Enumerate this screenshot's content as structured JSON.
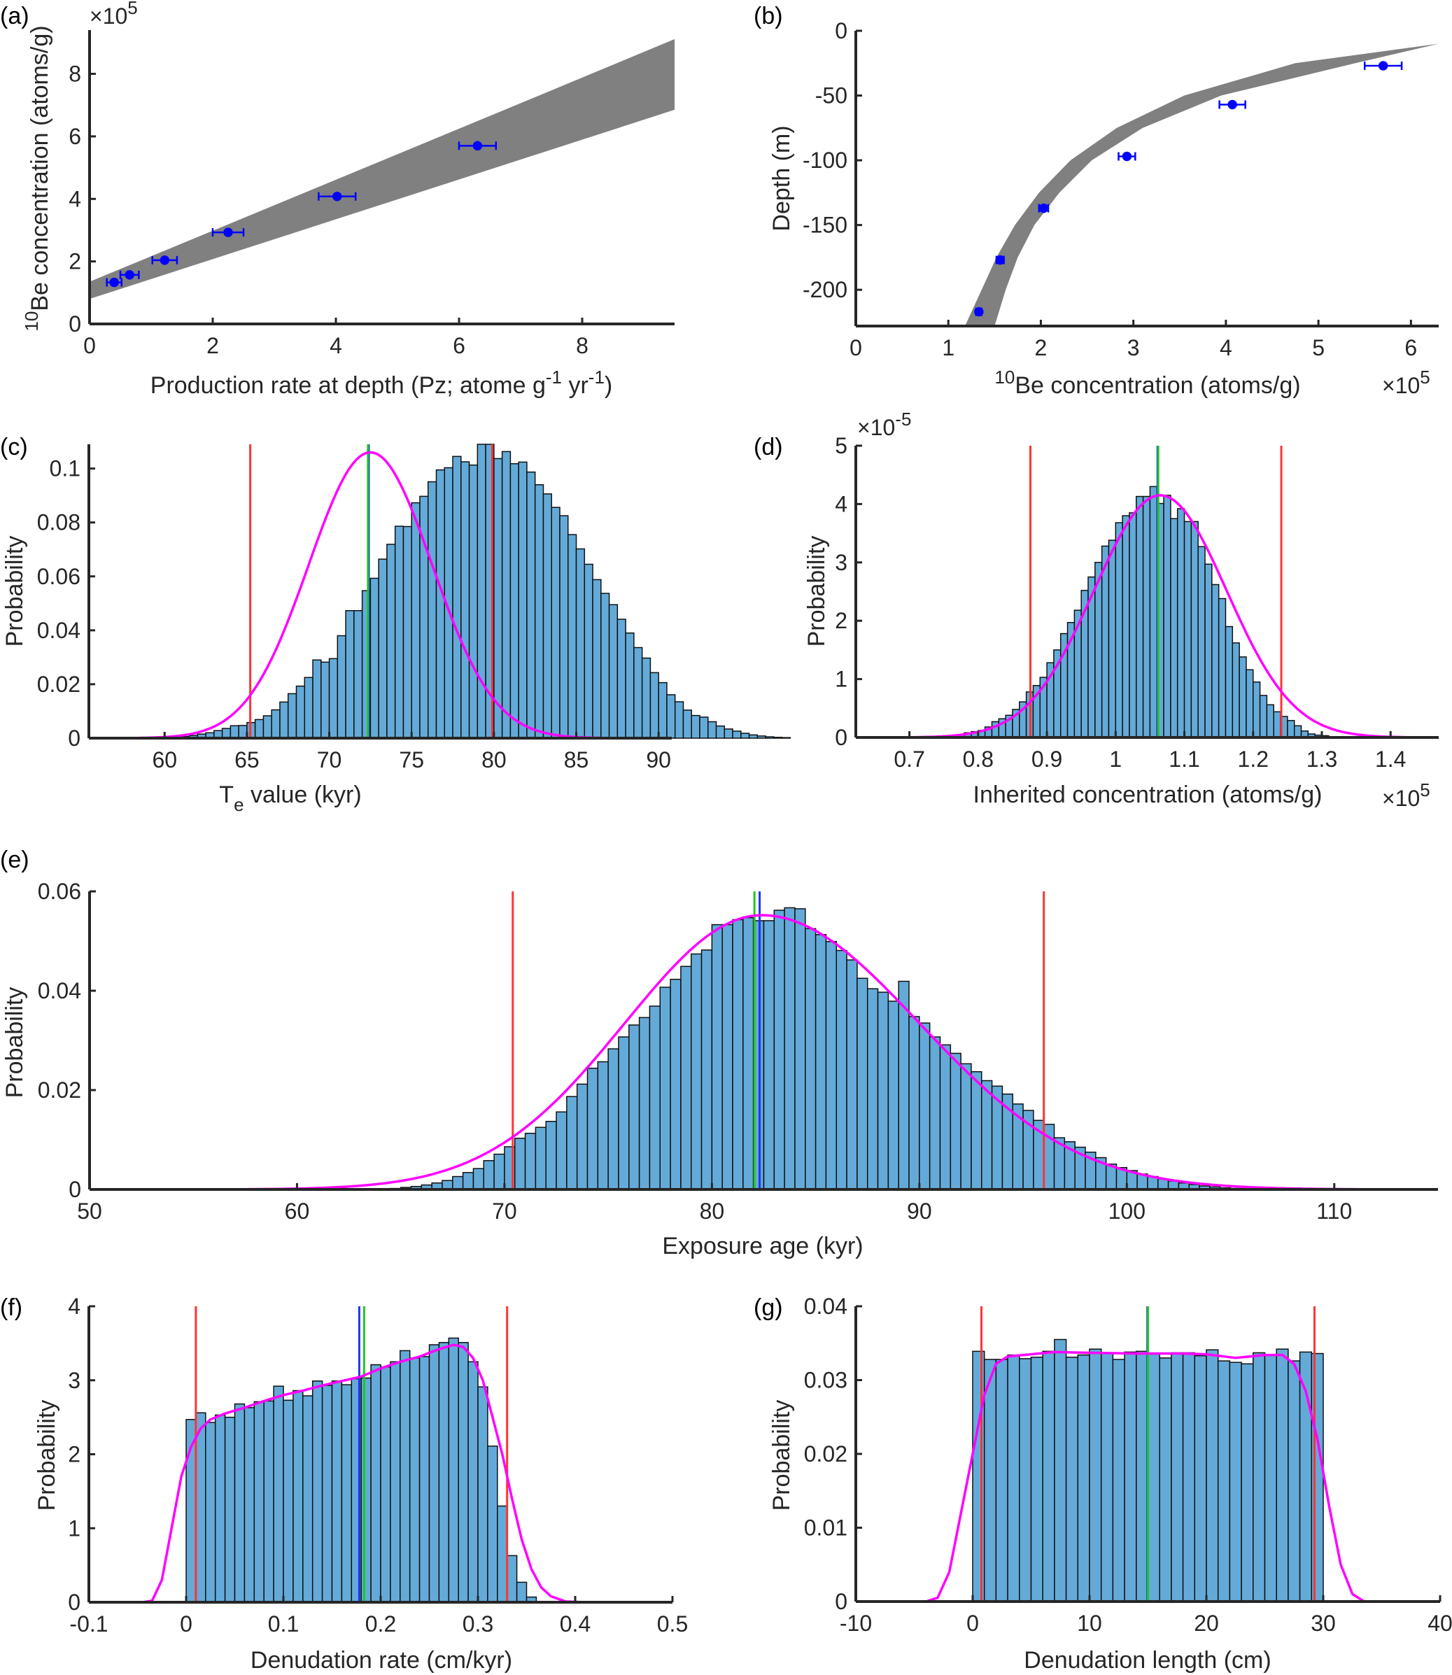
{
  "figure": {
    "description": "Monte Carlo depth-profile inversion results (panels a-g)"
  },
  "colors": {
    "band": "#808080",
    "points": "#0000ff",
    "bars": "#64aad8",
    "bar_edge": "#111111",
    "pdf": "#ff00ff",
    "ci": "#ff3333",
    "median": "#1ec81e",
    "mean": "#2233ee",
    "axis": "#262626"
  },
  "chart_data": [
    {
      "id": "a",
      "panel_label": "(a)",
      "type": "line",
      "xlabel": "Production rate at depth (Pz; atome g",
      "xlabel_sup1": "-1",
      "xlabel_mid": " yr",
      "xlabel_sup2": "-1",
      "xlabel_end": ")",
      "ylabel_sup": "10",
      "ylabel": "Be concentration (atoms/g)",
      "y_multiplier": "×10",
      "y_multiplier_exp": "5",
      "xlim": [
        0,
        9.5
      ],
      "ylim": [
        0,
        9.4
      ],
      "xticks": [
        0,
        2,
        4,
        6,
        8
      ],
      "yticks": [
        0,
        2,
        4,
        6,
        8
      ],
      "band": {
        "description": "Monte Carlo linear fits",
        "x": [
          0,
          9.5
        ],
        "upper": [
          1.35,
          9.1
        ],
        "lower": [
          0.8,
          6.85
        ]
      },
      "points": [
        {
          "x": 0.4,
          "y": 1.33,
          "xerr": 0.12,
          "yerr": 0.05
        },
        {
          "x": 0.65,
          "y": 1.57,
          "xerr": 0.15,
          "yerr": 0.06
        },
        {
          "x": 1.22,
          "y": 2.04,
          "xerr": 0.2,
          "yerr": 0.07
        },
        {
          "x": 2.25,
          "y": 2.93,
          "xerr": 0.25,
          "yerr": 0.08
        },
        {
          "x": 4.02,
          "y": 4.08,
          "xerr": 0.3,
          "yerr": 0.1
        },
        {
          "x": 6.3,
          "y": 5.7,
          "xerr": 0.3,
          "yerr": 0.15
        }
      ]
    },
    {
      "id": "b",
      "panel_label": "(b)",
      "type": "line",
      "xlabel_sup": "10",
      "xlabel": "Be concentration (atoms/g)",
      "x_multiplier": "×10",
      "x_multiplier_exp": "5",
      "ylabel": "Depth (m)",
      "xlim": [
        0,
        6.3
      ],
      "ylim": [
        -228,
        0
      ],
      "xticks": [
        0,
        1,
        2,
        3,
        4,
        5,
        6
      ],
      "yticks": [
        0,
        -50,
        -100,
        -150,
        -200
      ],
      "band": {
        "description": "Monte Carlo depth profiles",
        "depth": [
          -228,
          -200,
          -175,
          -150,
          -125,
          -100,
          -75,
          -50,
          -25,
          -10
        ],
        "left": [
          1.18,
          1.36,
          1.52,
          1.72,
          1.98,
          2.32,
          2.82,
          3.55,
          4.75,
          6.3
        ],
        "right": [
          1.5,
          1.62,
          1.75,
          1.93,
          2.2,
          2.55,
          3.1,
          3.95,
          5.4,
          6.3
        ]
      },
      "points": [
        {
          "x": 1.33,
          "y": -217,
          "xerr": 0.03,
          "yerr": 2
        },
        {
          "x": 1.56,
          "y": -177,
          "xerr": 0.04,
          "yerr": 2
        },
        {
          "x": 2.03,
          "y": -137,
          "xerr": 0.05,
          "yerr": 2
        },
        {
          "x": 2.93,
          "y": -97,
          "xerr": 0.09,
          "yerr": 2
        },
        {
          "x": 4.07,
          "y": -57,
          "xerr": 0.14,
          "yerr": 2
        },
        {
          "x": 5.7,
          "y": -27,
          "xerr": 0.2,
          "yerr": 2
        }
      ]
    },
    {
      "id": "c",
      "panel_label": "(c)",
      "type": "bar",
      "xlabel": "T",
      "xlabel_sub": "e",
      "xlabel_end": " value (kyr)",
      "ylabel": "Probability",
      "xlim": [
        55.4,
        90.8
      ],
      "ylim": [
        0,
        0.109
      ],
      "xticks": [
        60,
        65,
        70,
        75,
        80,
        85,
        90
      ],
      "yticks": [
        0,
        0.02,
        0.04,
        0.06,
        0.08,
        0.1
      ],
      "ytick_labels": [
        "0",
        "0.02",
        "0.04",
        "0.06",
        "0.08",
        "0.1"
      ],
      "bin_start": 60.0,
      "bin_width": 0.5,
      "values": [
        0.0002,
        0.0004,
        0.0006,
        0.001,
        0.0015,
        0.002,
        0.0028,
        0.0036,
        0.0046,
        0.0047,
        0.0058,
        0.0069,
        0.0083,
        0.0105,
        0.0134,
        0.0165,
        0.0193,
        0.0225,
        0.029,
        0.0282,
        0.0295,
        0.038,
        0.0473,
        0.0473,
        0.0547,
        0.0593,
        0.0664,
        0.0719,
        0.0786,
        0.0785,
        0.0873,
        0.0897,
        0.0951,
        0.0995,
        0.1003,
        0.1045,
        0.1025,
        0.1013,
        0.109,
        0.109,
        0.1037,
        0.1063,
        0.1018,
        0.1024,
        0.0987,
        0.094,
        0.0906,
        0.0856,
        0.0825,
        0.0755,
        0.0702,
        0.0645,
        0.0588,
        0.0537,
        0.0495,
        0.0441,
        0.039,
        0.0336,
        0.0297,
        0.0243,
        0.0206,
        0.0161,
        0.0135,
        0.0104,
        0.0084,
        0.0078,
        0.0061,
        0.0045,
        0.0034,
        0.0026,
        0.0018,
        0.0012,
        0.0008,
        0.0005,
        0.0003,
        0.0002
      ],
      "pdf": {
        "mu": 72.5,
        "sigma": 3.75,
        "peak": 0.106
      },
      "ci": [
        65.2,
        79.9
      ],
      "median": 72.35,
      "mean": 72.4
    },
    {
      "id": "d",
      "panel_label": "(d)",
      "type": "bar",
      "xlabel": "Inherited concentration (atoms/g)",
      "x_multiplier": "×10",
      "x_multiplier_exp": "5",
      "y_multiplier": "×10",
      "y_multiplier_exp": "-5",
      "ylabel": "Probability",
      "xlim": [
        0.622,
        1.47
      ],
      "ylim": [
        0,
        5
      ],
      "xticks": [
        0.7,
        0.8,
        0.9,
        1,
        1.1,
        1.2,
        1.3,
        1.4
      ],
      "xtick_labels": [
        "0.7",
        "0.8",
        "0.9",
        "1",
        "1.1",
        "1.2",
        "1.3",
        "1.4"
      ],
      "yticks": [
        0,
        1,
        2,
        3,
        4,
        5
      ],
      "bin_start": 0.76,
      "bin_width": 0.01,
      "values": [
        0.03,
        0.05,
        0.08,
        0.1,
        0.12,
        0.18,
        0.27,
        0.32,
        0.38,
        0.48,
        0.61,
        0.78,
        0.89,
        1.03,
        1.28,
        1.5,
        1.78,
        1.97,
        2.18,
        2.52,
        2.75,
        3.0,
        3.28,
        3.38,
        3.68,
        3.8,
        3.85,
        4.13,
        4.13,
        4.3,
        4.01,
        4.15,
        3.75,
        3.92,
        3.7,
        3.7,
        3.27,
        2.97,
        2.62,
        2.38,
        1.9,
        1.62,
        1.38,
        1.16,
        0.95,
        0.72,
        0.56,
        0.44,
        0.36,
        0.29,
        0.2,
        0.11,
        0.06,
        0.04,
        0.03
      ],
      "pdf": {
        "mu": 1.065,
        "sigma": 0.0965,
        "peak": 4.15
      },
      "ci": [
        0.876,
        1.241
      ],
      "median": 1.062,
      "mean": 1.061
    },
    {
      "id": "e",
      "panel_label": "(e)",
      "type": "bar",
      "xlabel": "Exposure age (kyr)",
      "ylabel": "Probability",
      "xlim": [
        50,
        115
      ],
      "ylim": [
        0,
        0.06
      ],
      "xticks": [
        50,
        60,
        70,
        80,
        90,
        100,
        110
      ],
      "yticks": [
        0,
        0.02,
        0.04,
        0.06
      ],
      "ytick_labels": [
        "0",
        "0.02",
        "0.04",
        "0.06"
      ],
      "bin_start": 64.5,
      "bin_width": 0.5,
      "values": [
        0.0002,
        0.0004,
        0.0006,
        0.0009,
        0.0013,
        0.0018,
        0.0026,
        0.0034,
        0.0042,
        0.0058,
        0.0071,
        0.0086,
        0.0103,
        0.0113,
        0.0125,
        0.0137,
        0.0156,
        0.0187,
        0.0212,
        0.0244,
        0.0257,
        0.0283,
        0.0307,
        0.0331,
        0.0346,
        0.0369,
        0.0407,
        0.0423,
        0.0449,
        0.0474,
        0.0482,
        0.0533,
        0.0533,
        0.0543,
        0.0547,
        0.0541,
        0.0541,
        0.0562,
        0.0567,
        0.0565,
        0.0525,
        0.0513,
        0.0499,
        0.0481,
        0.0462,
        0.0425,
        0.0404,
        0.0397,
        0.0379,
        0.0419,
        0.0348,
        0.0335,
        0.0307,
        0.0291,
        0.0274,
        0.0253,
        0.0237,
        0.0219,
        0.0208,
        0.0192,
        0.0172,
        0.0159,
        0.0139,
        0.0131,
        0.0104,
        0.0096,
        0.0085,
        0.0075,
        0.0064,
        0.0051,
        0.0044,
        0.0038,
        0.0031,
        0.0026,
        0.0021,
        0.0017,
        0.0013,
        0.001,
        0.0007,
        0.0005,
        0.0003,
        0.0002
      ],
      "pdf": {
        "mu": 82.4,
        "sigma_left": 6.6,
        "sigma_right": 7.6,
        "peak": 0.0552
      },
      "ci": [
        70.4,
        96.0
      ],
      "median": 82.05,
      "mean": 82.3
    },
    {
      "id": "f",
      "panel_label": "(f)",
      "type": "bar",
      "xlabel": "Denudation rate (cm/kyr)",
      "ylabel": "Probability",
      "xlim": [
        -0.1,
        0.5
      ],
      "ylim": [
        0,
        4
      ],
      "xticks": [
        -0.1,
        0,
        0.1,
        0.2,
        0.3,
        0.4,
        0.5
      ],
      "xtick_labels": [
        "-0.1",
        "0",
        "0.1",
        "0.2",
        "0.3",
        "0.4",
        "0.5"
      ],
      "yticks": [
        0,
        1,
        2,
        3,
        4
      ],
      "bin_start": 0.0,
      "bin_width": 0.01,
      "values": [
        2.47,
        2.56,
        2.43,
        2.53,
        2.5,
        2.68,
        2.63,
        2.71,
        2.72,
        2.92,
        2.73,
        2.86,
        2.79,
        2.99,
        2.93,
        2.99,
        2.94,
        3.02,
        3.03,
        3.21,
        3.18,
        3.25,
        3.4,
        3.3,
        3.32,
        3.48,
        3.51,
        3.57,
        3.51,
        3.25,
        2.91,
        2.11,
        1.3,
        0.63,
        0.27,
        0.07
      ],
      "pdf_points": [
        [
          -0.045,
          0
        ],
        [
          -0.035,
          0.02
        ],
        [
          -0.025,
          0.3
        ],
        [
          -0.015,
          1.0
        ],
        [
          -0.005,
          1.7
        ],
        [
          0.005,
          2.1
        ],
        [
          0.015,
          2.35
        ],
        [
          0.025,
          2.47
        ],
        [
          0.04,
          2.55
        ],
        [
          0.06,
          2.63
        ],
        [
          0.08,
          2.72
        ],
        [
          0.1,
          2.8
        ],
        [
          0.12,
          2.86
        ],
        [
          0.14,
          2.93
        ],
        [
          0.16,
          2.99
        ],
        [
          0.18,
          3.05
        ],
        [
          0.2,
          3.16
        ],
        [
          0.22,
          3.25
        ],
        [
          0.24,
          3.32
        ],
        [
          0.26,
          3.42
        ],
        [
          0.275,
          3.48
        ],
        [
          0.285,
          3.45
        ],
        [
          0.295,
          3.3
        ],
        [
          0.305,
          3.0
        ],
        [
          0.315,
          2.5
        ],
        [
          0.325,
          2.0
        ],
        [
          0.335,
          1.4
        ],
        [
          0.345,
          0.85
        ],
        [
          0.355,
          0.45
        ],
        [
          0.365,
          0.2
        ],
        [
          0.375,
          0.08
        ],
        [
          0.39,
          0.01
        ],
        [
          0.41,
          0
        ],
        [
          0.45,
          0
        ]
      ],
      "ci": [
        0.01,
        0.33
      ],
      "median": 0.183,
      "mean": 0.178
    },
    {
      "id": "g",
      "panel_label": "(g)",
      "type": "bar",
      "xlabel": "Denudation length (cm)",
      "ylabel": "Probability",
      "xlim": [
        -10,
        40
      ],
      "ylim": [
        0,
        0.04
      ],
      "xticks": [
        -10,
        0,
        10,
        20,
        30,
        40
      ],
      "yticks": [
        0,
        0.01,
        0.02,
        0.03,
        0.04
      ],
      "ytick_labels": [
        "0",
        "0.01",
        "0.02",
        "0.03",
        "0.04"
      ],
      "bin_start": 0,
      "bin_width": 1,
      "values": [
        0.0339,
        0.0328,
        0.0328,
        0.0334,
        0.0329,
        0.0331,
        0.0339,
        0.0355,
        0.0331,
        0.0334,
        0.0342,
        0.0336,
        0.0328,
        0.0338,
        0.0339,
        0.0336,
        0.033,
        0.0337,
        0.0337,
        0.0333,
        0.0341,
        0.0326,
        0.0324,
        0.0322,
        0.0337,
        0.0334,
        0.0342,
        0.0326,
        0.0338,
        0.0336
      ],
      "pdf_points": [
        [
          -4,
          0
        ],
        [
          -3,
          0.0005
        ],
        [
          -2,
          0.004
        ],
        [
          -1,
          0.012
        ],
        [
          0,
          0.02
        ],
        [
          1,
          0.028
        ],
        [
          2,
          0.0322
        ],
        [
          3,
          0.0332
        ],
        [
          5,
          0.0335
        ],
        [
          7,
          0.0338
        ],
        [
          10,
          0.0337
        ],
        [
          14,
          0.0336
        ],
        [
          18,
          0.0336
        ],
        [
          20,
          0.0335
        ],
        [
          22.5,
          0.033
        ],
        [
          25,
          0.0334
        ],
        [
          26.5,
          0.0334
        ],
        [
          27.5,
          0.0322
        ],
        [
          28.5,
          0.0285
        ],
        [
          29.5,
          0.022
        ],
        [
          30.5,
          0.013
        ],
        [
          31.5,
          0.005
        ],
        [
          32.5,
          0.001
        ],
        [
          33.5,
          0
        ],
        [
          34,
          0
        ]
      ],
      "ci": [
        0.75,
        29.25
      ],
      "median": 15.0,
      "mean": 14.95
    }
  ]
}
